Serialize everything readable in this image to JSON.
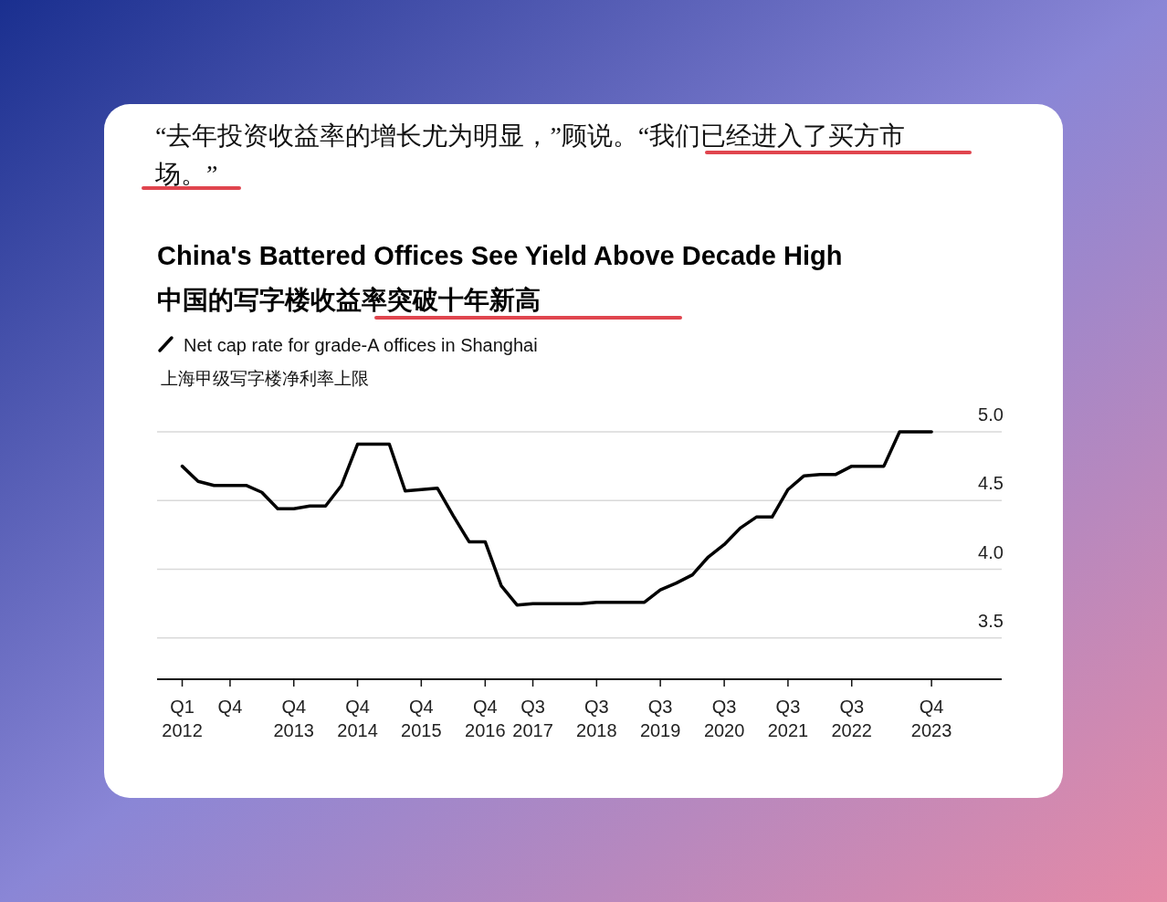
{
  "chart_data": {
    "type": "line",
    "title": "China's Battered Offices See Yield Above Decade High",
    "subtitle": "中国的写字楼收益率突破十年新高",
    "annotations": [
      "“去年投资收益率的增长尤为明显，”顾说。“我们已经进入了买方市场。”"
    ],
    "x": [
      "2012-01",
      "2012-04",
      "2012-07",
      "2012-10",
      "2013-01",
      "2013-04",
      "2013-07",
      "2013-10",
      "2014-01",
      "2014-04",
      "2014-07",
      "2014-10",
      "2015-01",
      "2015-04",
      "2015-07",
      "2015-10",
      "2016-01",
      "2016-04",
      "2016-07",
      "2016-10",
      "2017-01",
      "2017-04",
      "2017-07",
      "2017-10",
      "2018-01",
      "2018-04",
      "2018-07",
      "2018-10",
      "2019-01",
      "2019-04",
      "2019-07",
      "2019-10",
      "2020-01",
      "2020-04",
      "2020-07",
      "2020-10",
      "2021-01",
      "2021-04",
      "2021-07",
      "2021-10",
      "2022-01",
      "2022-04",
      "2022-07",
      "2022-10",
      "2023-01",
      "2023-04",
      "2023-07",
      "2023-10"
    ],
    "series": [
      {
        "name": "Net cap rate for grade-A offices in Shanghai\n上海甲级写字楼净利率上限",
        "color": "#000000",
        "values": [
          4.75,
          4.64,
          4.61,
          4.61,
          4.61,
          4.56,
          4.44,
          4.44,
          4.46,
          4.46,
          4.61,
          4.91,
          4.91,
          4.91,
          4.57,
          4.58,
          4.59,
          4.39,
          4.2,
          4.2,
          3.88,
          3.74,
          3.75,
          3.75,
          3.75,
          3.75,
          3.76,
          3.76,
          3.76,
          3.76,
          3.85,
          3.9,
          3.96,
          4.09,
          4.18,
          4.3,
          4.38,
          4.38,
          4.58,
          4.68,
          4.69,
          4.69,
          4.75,
          4.75,
          4.75,
          5.0,
          5.0,
          5.0
        ]
      }
    ],
    "xlim": [
      "2011-08-10",
      "2024-11-06"
    ],
    "xticks": [
      {
        "value": "2012-01",
        "label": "Q1\n2012"
      },
      {
        "value": "2012-10",
        "label": "Q4"
      },
      {
        "value": "2013-10",
        "label": "Q4\n2013"
      },
      {
        "value": "2014-10",
        "label": "Q4\n2014"
      },
      {
        "value": "2015-10",
        "label": "Q4\n2015"
      },
      {
        "value": "2016-10",
        "label": "Q4\n2016"
      },
      {
        "value": "2017-07",
        "label": "Q3\n2017"
      },
      {
        "value": "2018-07",
        "label": "Q3\n2018"
      },
      {
        "value": "2019-07",
        "label": "Q3\n2019"
      },
      {
        "value": "2020-07",
        "label": "Q3\n2020"
      },
      {
        "value": "2021-07",
        "label": "Q3\n2021"
      },
      {
        "value": "2022-07",
        "label": "Q3\n2022"
      },
      {
        "value": "2023-10",
        "label": "Q4\n2023"
      }
    ],
    "ylim": [
      3.2,
      5.0
    ],
    "yticks": [
      {
        "value": 3.5,
        "label": "3.5"
      },
      {
        "value": 4.0,
        "label": "4.0"
      },
      {
        "value": 4.5,
        "label": "4.5"
      },
      {
        "value": 5.0,
        "label": "5.0"
      }
    ],
    "grid": "y",
    "legend": "top left",
    "marker": "none",
    "line_style": "solid"
  }
}
